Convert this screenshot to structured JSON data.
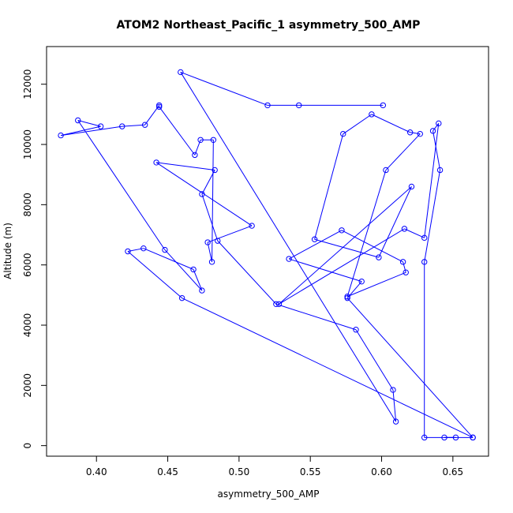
{
  "chart_data": {
    "type": "line",
    "title": "ATOM2 Northeast_Pacific_1 asymmetry_500_AMP",
    "xlabel": "asymmetry_500_AMP",
    "ylabel": "Altitude (m)",
    "xlim": [
      0.365,
      0.675
    ],
    "ylim": [
      -350,
      13250
    ],
    "xticks": [
      0.4,
      0.45,
      0.5,
      0.55,
      0.6,
      0.65
    ],
    "xtick_labels": [
      "0.40",
      "0.45",
      "0.50",
      "0.55",
      "0.60",
      "0.65"
    ],
    "yticks": [
      0,
      2000,
      4000,
      6000,
      8000,
      10000,
      12000
    ],
    "ytick_labels": [
      "0",
      "2000",
      "4000",
      "6000",
      "8000",
      "10000",
      "12000"
    ],
    "grid": false,
    "color": "#0000ff",
    "series": [
      {
        "x": [
          0.664,
          0.576,
          0.586,
          0.535,
          0.572,
          0.615,
          0.617,
          0.576,
          0.603,
          0.627,
          0.62,
          0.593,
          0.573,
          0.553,
          0.598,
          0.621,
          0.528,
          0.616,
          0.63,
          0.64,
          0.636,
          0.641,
          0.63,
          0.63,
          0.652,
          0.644,
          0.664,
          0.46,
          0.422,
          0.433,
          0.468,
          0.474,
          0.448,
          0.387,
          0.403,
          0.375,
          0.418,
          0.434,
          0.444,
          0.444,
          0.469,
          0.473,
          0.482,
          0.481,
          0.478,
          0.509,
          0.442,
          0.483,
          0.474,
          0.485,
          0.526,
          0.582,
          0.608,
          0.61,
          0.459,
          0.52,
          0.542,
          0.601
        ],
        "y": [
          270,
          4900,
          5450,
          6200,
          7150,
          6100,
          5750,
          4950,
          9150,
          10350,
          10400,
          11000,
          10350,
          6850,
          6250,
          8600,
          4700,
          7200,
          6900,
          10700,
          10450,
          9150,
          6100,
          270,
          270,
          270,
          270,
          4900,
          6450,
          6550,
          5850,
          5150,
          6500,
          10800,
          10600,
          10300,
          10600,
          10650,
          11300,
          11250,
          9650,
          10150,
          10150,
          6100,
          6750,
          7300,
          9400,
          9150,
          8350,
          6800,
          4700,
          3850,
          1850,
          800,
          12400,
          11300,
          11300,
          11300
        ]
      }
    ]
  }
}
